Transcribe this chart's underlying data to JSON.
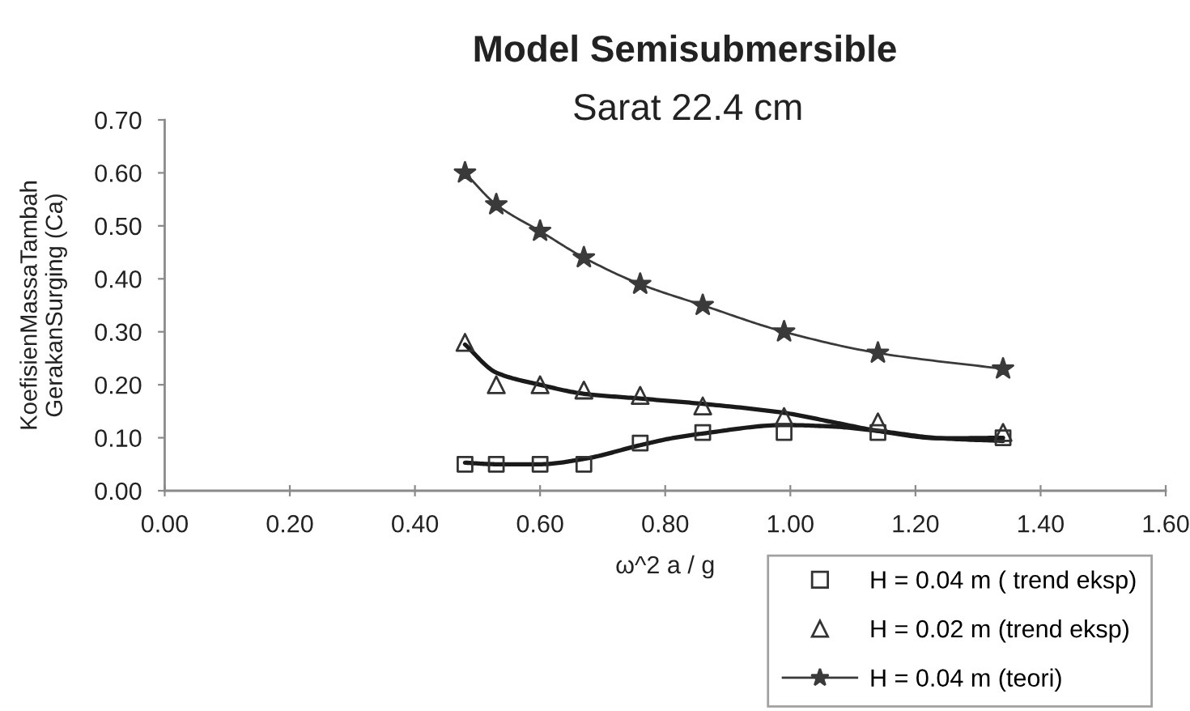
{
  "chart_data": {
    "type": "scatter",
    "title": "Model Semisubmersible",
    "subtitle": "Sarat 22.4 cm",
    "xlabel": "ω^2 a / g",
    "ylabel": "KoefisienMassaTambah\nGerakanSurging (Ca)",
    "x": [
      0.48,
      0.53,
      0.6,
      0.67,
      0.76,
      0.86,
      0.99,
      1.14,
      1.34
    ],
    "series": [
      {
        "name": "H = 0.04 m ( trend eksp)",
        "marker": "square",
        "color": "#333333",
        "values": [
          0.05,
          0.05,
          0.05,
          0.05,
          0.09,
          0.11,
          0.11,
          0.11,
          0.1
        ]
      },
      {
        "name": "H = 0.02 m (trend eksp)",
        "marker": "triangle",
        "color": "#333333",
        "values": [
          0.28,
          0.2,
          0.2,
          0.19,
          0.18,
          0.16,
          0.14,
          0.13,
          0.11
        ]
      },
      {
        "name": "H = 0.04 m (teori)",
        "type": "line",
        "marker": "star",
        "color": "#3a3a3a",
        "values": [
          0.6,
          0.54,
          0.49,
          0.44,
          0.39,
          0.35,
          0.3,
          0.26,
          0.23
        ]
      },
      {
        "type": "line",
        "color": "#1a1a1a",
        "x": [
          0.48,
          0.53,
          0.6,
          0.67,
          0.76,
          0.81,
          0.86,
          0.99,
          1.07,
          1.14,
          1.24,
          1.34
        ],
        "values": [
          0.053,
          0.05,
          0.05,
          0.06,
          0.086,
          0.099,
          0.108,
          0.124,
          0.121,
          0.113,
          0.099,
          0.094
        ]
      },
      {
        "type": "line",
        "color": "#1a1a1a",
        "x": [
          0.48,
          0.53,
          0.6,
          0.67,
          0.76,
          0.86,
          0.99,
          1.07,
          1.14,
          1.24,
          1.34
        ],
        "values": [
          0.276,
          0.223,
          0.2,
          0.183,
          0.174,
          0.164,
          0.147,
          0.129,
          0.113,
          0.099,
          0.1
        ]
      }
    ],
    "xlim": [
      0,
      1.6
    ],
    "ylim": [
      0,
      0.7
    ],
    "xticks": [
      {
        "value": 0,
        "label": "0.00"
      },
      {
        "value": 0.2,
        "label": "0.20"
      },
      {
        "value": 0.4,
        "label": "0.40"
      },
      {
        "value": 0.6,
        "label": "0.60"
      },
      {
        "value": 0.8,
        "label": "0.80"
      },
      {
        "value": 1.0,
        "label": "1.00"
      },
      {
        "value": 1.2,
        "label": "1.20"
      },
      {
        "value": 1.4,
        "label": "1.40"
      },
      {
        "value": 1.6,
        "label": "1.60"
      }
    ],
    "yticks": [
      {
        "value": 0,
        "label": "0.00"
      },
      {
        "value": 0.1,
        "label": "0.10"
      },
      {
        "value": 0.2,
        "label": "0.20"
      },
      {
        "value": 0.3,
        "label": "0.30"
      },
      {
        "value": 0.4,
        "label": "0.40"
      },
      {
        "value": 0.5,
        "label": "0.50"
      },
      {
        "value": 0.6,
        "label": "0.60"
      },
      {
        "value": 0.7,
        "label": "0.70"
      }
    ],
    "grid": false,
    "legend": "bottom right"
  }
}
